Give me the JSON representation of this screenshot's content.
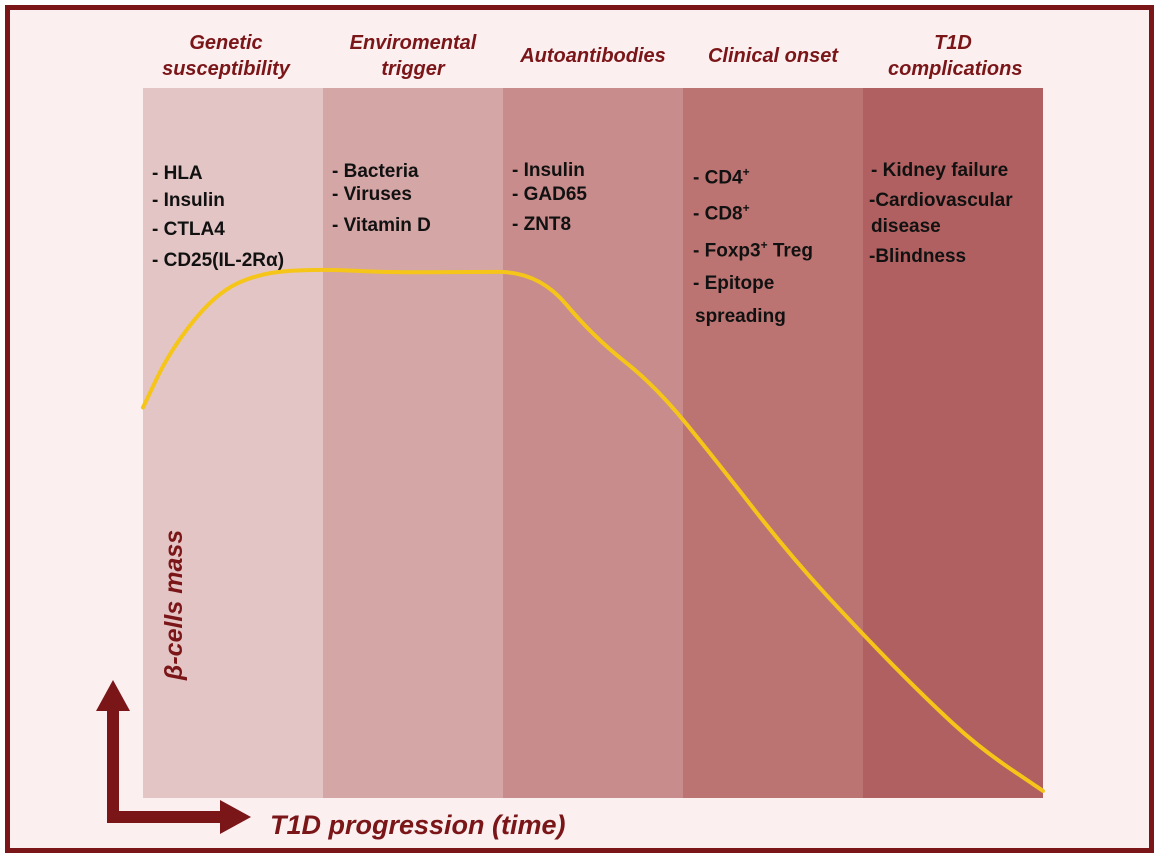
{
  "stages": [
    {
      "heading": "Genetic susceptibility",
      "color": "#e4c5c5",
      "items": [
        "- HLA",
        "- Insulin",
        "- CTLA4",
        "- CD25(IL-2Rα)"
      ]
    },
    {
      "heading": "Enviromental trigger",
      "color": "#d4a6a5",
      "items": [
        "- Bacteria",
        "- Viruses",
        "- Vitamin D"
      ]
    },
    {
      "heading": "Autoantibodies",
      "color": "#c78c8b",
      "items": [
        "- Insulin",
        "- GAD65",
        "- ZNT8"
      ]
    },
    {
      "heading": "Clinical onset",
      "color": "#bc7472",
      "items": [
        "- CD4⁺",
        "- CD8⁺",
        "- Foxp3⁺ Treg",
        "- Epitope",
        "spreading"
      ]
    },
    {
      "heading": "T1D complications",
      "color": "#b06060",
      "items": [
        "- Kidney failure",
        "-Cardiovascular",
        "disease",
        "-Blindness"
      ]
    }
  ],
  "axes": {
    "y_label": "β-cells mass",
    "x_label": "T1D progression (time)",
    "color": "#7a1518"
  },
  "curve": {
    "color": "#f5c51a",
    "description_values": "relative beta-cell mass over time (0 = start, 1 = end of axis)",
    "points": [
      [
        0.0,
        0.55
      ],
      [
        0.03,
        0.63
      ],
      [
        0.08,
        0.71
      ],
      [
        0.13,
        0.74
      ],
      [
        0.2,
        0.745
      ],
      [
        0.27,
        0.74
      ],
      [
        0.35,
        0.741
      ],
      [
        0.44,
        0.741
      ],
      [
        0.5,
        0.65
      ],
      [
        0.57,
        0.58
      ],
      [
        0.64,
        0.47
      ],
      [
        0.72,
        0.34
      ],
      [
        0.8,
        0.23
      ],
      [
        0.87,
        0.14
      ],
      [
        0.93,
        0.07
      ],
      [
        1.0,
        0.01
      ]
    ]
  },
  "arrow_color": "#7a1518"
}
